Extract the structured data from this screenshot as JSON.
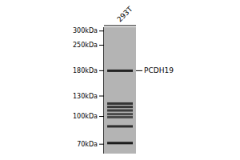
{
  "chart_data": {
    "type": "western_blot",
    "log": "y",
    "ylim": [
      62,
      315
    ],
    "yticks": [
      {
        "value": 300,
        "label": "300kDa"
      },
      {
        "value": 250,
        "label": "250kDa"
      },
      {
        "value": 180,
        "label": "180kDa"
      },
      {
        "value": 130,
        "label": "130kDa"
      },
      {
        "value": 100,
        "label": "100kDa"
      },
      {
        "value": 70,
        "label": "70kDa"
      }
    ],
    "series": [
      {
        "name": "293T",
        "values": [
          180,
          118,
          113,
          108,
          103,
          99,
          88,
          71
        ],
        "intensity": [
          0.82,
          0.62,
          0.58,
          0.52,
          0.35,
          0.33,
          0.7,
          0.92
        ]
      }
    ],
    "annotations": [
      {
        "text": "PCDH19",
        "y": 180
      }
    ]
  }
}
